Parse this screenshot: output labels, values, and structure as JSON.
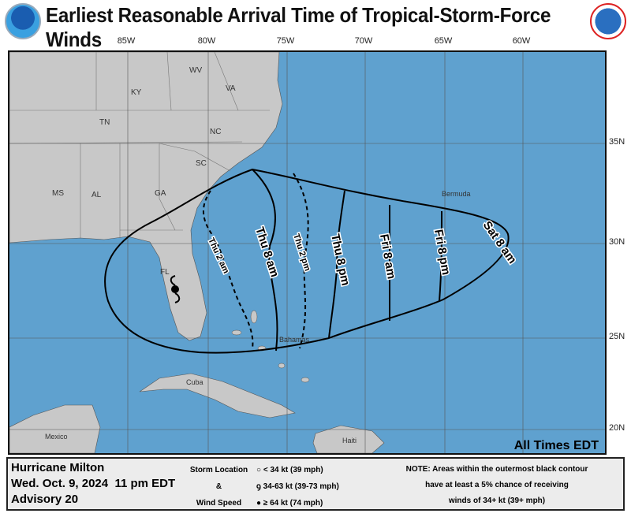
{
  "title": "Earliest Reasonable Arrival Time of Tropical-Storm-Force Winds",
  "logos": [
    "NOAA",
    "National Weather Service"
  ],
  "longitudes": [
    "85W",
    "80W",
    "75W",
    "70W",
    "65W",
    "60W"
  ],
  "latitudes": [
    "35N",
    "30N",
    "25N",
    "20N"
  ],
  "places": {
    "wv": "WV",
    "va": "VA",
    "ky": "KY",
    "tn": "TN",
    "nc": "NC",
    "sc": "SC",
    "ms": "MS",
    "al": "AL",
    "ga": "GA",
    "fl": "FL",
    "bermuda": "Bermuda",
    "bahamas": "Bahamas",
    "cuba": "Cuba",
    "mexico": "Mexico",
    "haiti": "Haiti"
  },
  "contours": [
    "Thu 2 am",
    "Thu 8 am",
    "Thu 2 pm",
    "Thu 8 pm",
    "Fri 8 am",
    "Fri 8 pm",
    "Sat 8 am"
  ],
  "times_note": "All Times EDT",
  "storm": {
    "name": "Hurricane Milton",
    "datetime": "Wed. Oct. 9, 2024  11 pm EDT",
    "advisory": "Advisory 20"
  },
  "legend": {
    "label1": "Storm Location",
    "label2": "&",
    "label3": "Wind Speed",
    "item1": "< 34 kt (39 mph)",
    "item2": "34-63 kt (39-73 mph)",
    "item3": "≥ 64 kt (74 mph)"
  },
  "note": {
    "line1": "NOTE: Areas within the outermost black contour",
    "line2": "have at least a 5% chance of receiving",
    "line3": "winds of 34+ kt (39+ mph)"
  },
  "colors": {
    "ocean": "#5fa1cf",
    "land": "#c8c8c8",
    "contour": "#000000"
  }
}
